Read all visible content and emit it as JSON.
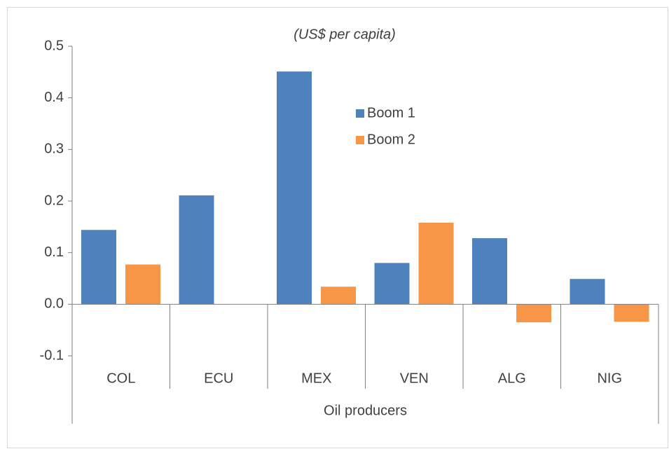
{
  "chart_data": {
    "type": "bar",
    "subtitle": "(US$ per capita)",
    "categories": [
      "COL",
      "ECU",
      "MEX",
      "VEN",
      "ALG",
      "NIG"
    ],
    "group_label": "Oil producers",
    "series": [
      {
        "name": "Boom 1",
        "color": "#4f81bd",
        "values": [
          0.144,
          0.211,
          0.451,
          0.08,
          0.128,
          0.049
        ]
      },
      {
        "name": "Boom 2",
        "color": "#f79646",
        "values": [
          0.077,
          null,
          0.034,
          0.158,
          -0.035,
          -0.034
        ]
      }
    ],
    "ylim": [
      -0.1,
      0.5
    ],
    "yticks": [
      -0.1,
      {
        "value": 0,
        "label": "0.0"
      },
      0.1,
      0.2,
      0.3,
      0.4,
      0.5
    ],
    "grid": false
  }
}
